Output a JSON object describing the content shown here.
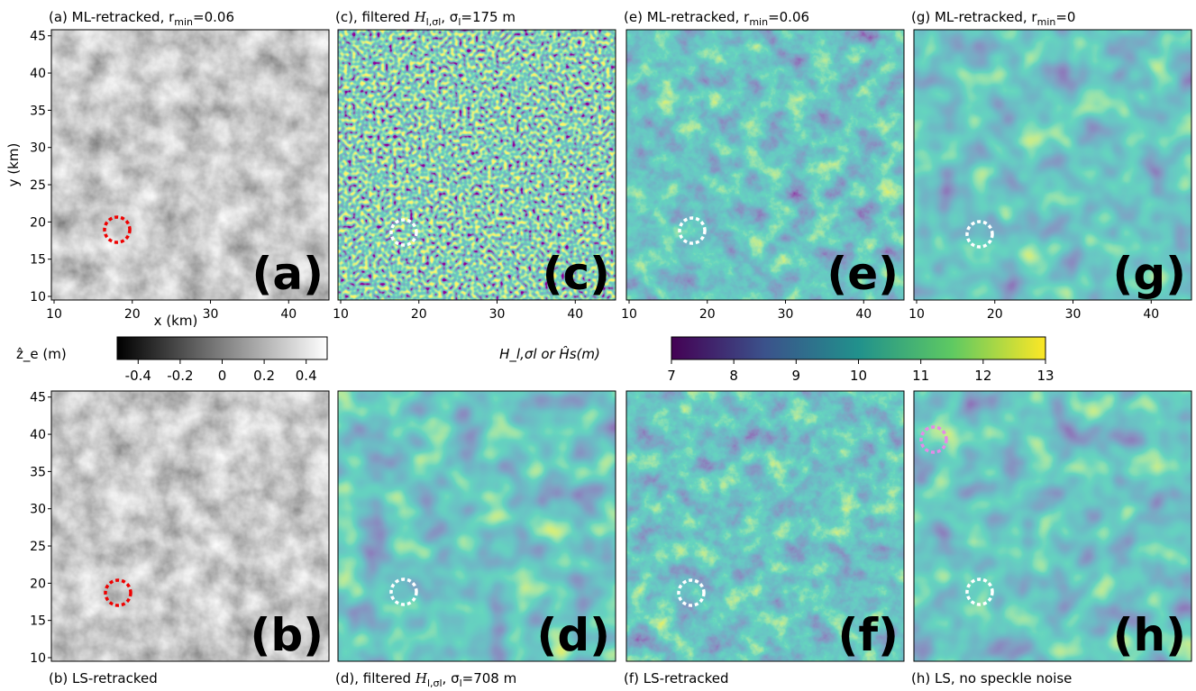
{
  "panels": [
    {
      "id": "a",
      "title": [
        {
          "t": "(a)  ML-retracked, r"
        },
        {
          "t": "min",
          "sub": true
        },
        {
          "t": "=0.06"
        }
      ],
      "label": "(a)",
      "cmap": "gray",
      "circle": "red",
      "xticks": [
        "10",
        "20",
        "30",
        "40"
      ],
      "yticks": [
        "10",
        "15",
        "20",
        "25",
        "30",
        "35",
        "40",
        "45"
      ],
      "xlabel": "x (km)",
      "ylabel": "y (km)"
    },
    {
      "id": "c",
      "title": [
        {
          "t": "(c), filtered "
        },
        {
          "t": "H",
          "it": true
        },
        {
          "t": "l,σl",
          "sub": true
        },
        {
          "t": ",  σ"
        },
        {
          "t": "l",
          "sub": true
        },
        {
          "t": "=175 m"
        }
      ],
      "label": "(c)",
      "cmap": "noise",
      "circle": "white",
      "xticks": [
        "10",
        "20",
        "30",
        "40"
      ]
    },
    {
      "id": "e",
      "title": [
        {
          "t": "(e) ML-retracked, r"
        },
        {
          "t": "min",
          "sub": true
        },
        {
          "t": "=0.06"
        }
      ],
      "label": "(e)",
      "cmap": "viridis",
      "circle": "white",
      "xticks": [
        "10",
        "20",
        "30",
        "40"
      ]
    },
    {
      "id": "g",
      "title": [
        {
          "t": "(g) ML-retracked, r"
        },
        {
          "t": "min",
          "sub": true
        },
        {
          "t": "=0"
        }
      ],
      "label": "(g)",
      "cmap": "viridis-smooth",
      "circle": "white",
      "xticks": [
        "10",
        "20",
        "30",
        "40"
      ]
    },
    {
      "id": "b",
      "title": [
        {
          "t": "(b)  LS-retracked"
        }
      ],
      "label": "(b)",
      "cmap": "gray",
      "circle": "red",
      "yticks": [
        "10",
        "15",
        "20",
        "25",
        "30",
        "35",
        "40",
        "45"
      ]
    },
    {
      "id": "d",
      "title": [
        {
          "t": "(d), filtered "
        },
        {
          "t": "H",
          "it": true
        },
        {
          "t": "l,σl",
          "sub": true
        },
        {
          "t": ",  σ"
        },
        {
          "t": "l",
          "sub": true
        },
        {
          "t": "=708 m"
        }
      ],
      "label": "(d)",
      "cmap": "viridis-smooth",
      "circle": "white"
    },
    {
      "id": "f",
      "title": [
        {
          "t": "(f) LS-retracked"
        }
      ],
      "label": "(f)",
      "cmap": "viridis",
      "circle": "white"
    },
    {
      "id": "h",
      "title": [
        {
          "t": "(h) LS, no speckle noise"
        }
      ],
      "label": "(h)",
      "cmap": "viridis-smooth",
      "circle": "white",
      "circle2": "violet"
    }
  ],
  "colorbars": [
    {
      "label": "ẑ_e (m)",
      "cmap": "gray",
      "ticks": [
        "-0.4",
        "-0.2",
        "0",
        "0.2",
        "0.4"
      ]
    },
    {
      "label": "H_l,σl or Ĥs(m)",
      "cmap": "viridis",
      "ticks": [
        "7",
        "8",
        "9",
        "10",
        "11",
        "12",
        "13"
      ]
    }
  ]
}
